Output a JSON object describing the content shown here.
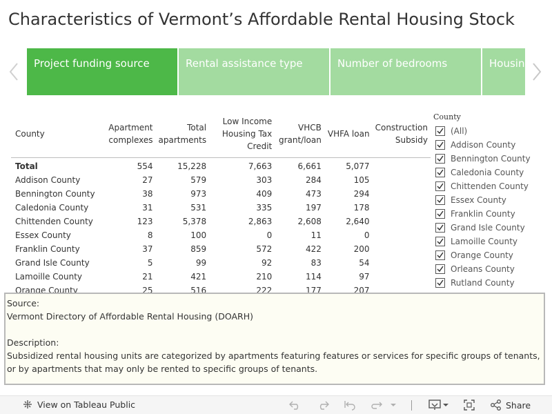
{
  "page": {
    "title": "Characteristics of Vermont’s Affordable Rental Housing Stock"
  },
  "tabs": [
    {
      "label": "Project funding source",
      "active": true
    },
    {
      "label": "Rental assistance type",
      "active": false
    },
    {
      "label": "Number of bedrooms",
      "active": false
    },
    {
      "label": "Housing for the disabled",
      "active": false
    }
  ],
  "table": {
    "headers": [
      "County",
      "Apartment complexes",
      "Total apartments",
      "Low Income Housing Tax Credit",
      "VHCB grant/loan",
      "VHFA loan",
      "Construction Subsidy"
    ],
    "total": {
      "label": "Total",
      "values": [
        "554",
        "15,228",
        "7,663",
        "6,661",
        "5,077",
        ""
      ]
    },
    "rows": [
      {
        "county": "Addison County",
        "values": [
          "27",
          "579",
          "303",
          "284",
          "105",
          ""
        ]
      },
      {
        "county": "Bennington County",
        "values": [
          "38",
          "973",
          "409",
          "473",
          "294",
          ""
        ]
      },
      {
        "county": "Caledonia County",
        "values": [
          "31",
          "531",
          "335",
          "197",
          "178",
          ""
        ]
      },
      {
        "county": "Chittenden County",
        "values": [
          "123",
          "5,378",
          "2,863",
          "2,608",
          "2,640",
          ""
        ]
      },
      {
        "county": "Essex County",
        "values": [
          "8",
          "100",
          "0",
          "11",
          "0",
          ""
        ]
      },
      {
        "county": "Franklin County",
        "values": [
          "37",
          "859",
          "572",
          "422",
          "200",
          ""
        ]
      },
      {
        "county": "Grand Isle County",
        "values": [
          "5",
          "99",
          "92",
          "83",
          "54",
          ""
        ]
      },
      {
        "county": "Lamoille County",
        "values": [
          "21",
          "421",
          "210",
          "114",
          "97",
          ""
        ]
      },
      {
        "county": "Orange County",
        "values": [
          "25",
          "516",
          "222",
          "177",
          "207",
          ""
        ]
      }
    ]
  },
  "filter": {
    "title": "County",
    "items": [
      "(All)",
      "Addison County",
      "Bennington County",
      "Caledonia County",
      "Chittenden County",
      "Essex County",
      "Franklin County",
      "Grand Isle County",
      "Lamoille County",
      "Orange County",
      "Orleans County",
      "Rutland County"
    ]
  },
  "note": {
    "source_label": "Source:",
    "source": "Vermont Directory of Affordable Rental Housing (DOARH)",
    "description_label": "Description:",
    "description": "Subsidized rental housing units are categorized by apartments featuring features or services for specific groups of tenants, or by apartments that may only be rented to specific groups of tenants."
  },
  "footer": {
    "view_label": "View on Tableau Public",
    "share_label": "Share"
  },
  "colors": {
    "tab_active": "#4db848",
    "tab_inactive": "#a3dba0"
  }
}
